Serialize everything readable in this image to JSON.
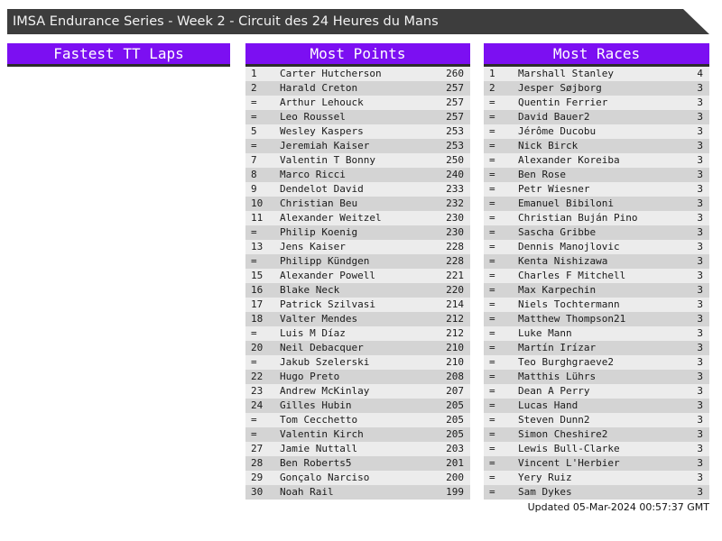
{
  "header": {
    "title": "IMSA Endurance Series - Week 2 - Circuit des 24 Heures du Mans"
  },
  "panels": [
    {
      "title": "Fastest TT Laps",
      "rows": []
    },
    {
      "title": "Most Points",
      "rows": [
        [
          "1",
          "Carter Hutcherson",
          "260"
        ],
        [
          "2",
          "Harald Creton",
          "257"
        ],
        [
          "=",
          "Arthur Lehouck",
          "257"
        ],
        [
          "=",
          "Leo Roussel",
          "257"
        ],
        [
          "5",
          "Wesley Kaspers",
          "253"
        ],
        [
          "=",
          "Jeremiah Kaiser",
          "253"
        ],
        [
          "7",
          "Valentin T Bonny",
          "250"
        ],
        [
          "8",
          "Marco Ricci",
          "240"
        ],
        [
          "9",
          "Dendelot David",
          "233"
        ],
        [
          "10",
          "Christian Beu",
          "232"
        ],
        [
          "11",
          "Alexander Weitzel",
          "230"
        ],
        [
          "=",
          "Philip Koenig",
          "230"
        ],
        [
          "13",
          "Jens Kaiser",
          "228"
        ],
        [
          "=",
          "Philipp Kündgen",
          "228"
        ],
        [
          "15",
          "Alexander Powell",
          "221"
        ],
        [
          "16",
          "Blake Neck",
          "220"
        ],
        [
          "17",
          "Patrick Szilvasi",
          "214"
        ],
        [
          "18",
          "Valter Mendes",
          "212"
        ],
        [
          "=",
          "Luis M Díaz",
          "212"
        ],
        [
          "20",
          "Neil Debacquer",
          "210"
        ],
        [
          "=",
          "Jakub Szelerski",
          "210"
        ],
        [
          "22",
          "Hugo Preto",
          "208"
        ],
        [
          "23",
          "Andrew McKinlay",
          "207"
        ],
        [
          "24",
          "Gilles Hubin",
          "205"
        ],
        [
          "=",
          "Tom Cecchetto",
          "205"
        ],
        [
          "=",
          "Valentin Kirch",
          "205"
        ],
        [
          "27",
          "Jamie Nuttall",
          "203"
        ],
        [
          "28",
          "Ben Roberts5",
          "201"
        ],
        [
          "29",
          "Gonçalo Narciso",
          "200"
        ],
        [
          "30",
          "Noah Rail",
          "199"
        ]
      ]
    },
    {
      "title": "Most Races",
      "rows": [
        [
          "1",
          "Marshall Stanley",
          "4"
        ],
        [
          "2",
          "Jesper Søjborg",
          "3"
        ],
        [
          "=",
          "Quentin Ferrier",
          "3"
        ],
        [
          "=",
          "David Bauer2",
          "3"
        ],
        [
          "=",
          "Jérôme Ducobu",
          "3"
        ],
        [
          "=",
          "Nick Birck",
          "3"
        ],
        [
          "=",
          "Alexander Koreiba",
          "3"
        ],
        [
          "=",
          "Ben Rose",
          "3"
        ],
        [
          "=",
          "Petr Wiesner",
          "3"
        ],
        [
          "=",
          "Emanuel Bibiloni",
          "3"
        ],
        [
          "=",
          "Christian Buján Pino",
          "3"
        ],
        [
          "=",
          "Sascha Gribbe",
          "3"
        ],
        [
          "=",
          "Dennis Manojlovic",
          "3"
        ],
        [
          "=",
          "Kenta Nishizawa",
          "3"
        ],
        [
          "=",
          "Charles F Mitchell",
          "3"
        ],
        [
          "=",
          "Max Karpechin",
          "3"
        ],
        [
          "=",
          "Niels Tochtermann",
          "3"
        ],
        [
          "=",
          "Matthew Thompson21",
          "3"
        ],
        [
          "=",
          "Luke Mann",
          "3"
        ],
        [
          "=",
          "Martín Irízar",
          "3"
        ],
        [
          "=",
          "Teo Burghgraeve2",
          "3"
        ],
        [
          "=",
          "Matthis Lührs",
          "3"
        ],
        [
          "=",
          "Dean A Perry",
          "3"
        ],
        [
          "=",
          "Lucas Hand",
          "3"
        ],
        [
          "=",
          "Steven Dunn2",
          "3"
        ],
        [
          "=",
          "Simon Cheshire2",
          "3"
        ],
        [
          "=",
          "Lewis Bull-Clarke",
          "3"
        ],
        [
          "=",
          "Vincent L'Herbier",
          "3"
        ],
        [
          "=",
          "Yery Ruiz",
          "3"
        ],
        [
          "=",
          "Sam Dykes",
          "3"
        ]
      ]
    }
  ],
  "footer": {
    "updated": "Updated 05-Mar-2024 00:57:37 GMT"
  },
  "colors": {
    "accent": "#7c0ff2",
    "titlebar": "#3d3d3d",
    "header_border": "#2d2d2d",
    "row_light": "#ececec",
    "row_dark": "#d4d4d4"
  }
}
